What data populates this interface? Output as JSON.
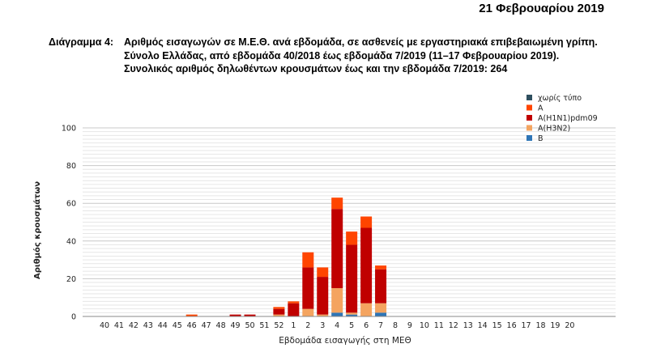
{
  "header": {
    "date": "21 Φεβρουαρίου 2019"
  },
  "caption": {
    "number": "Διάγραμμα 4:",
    "line1": "Αριθμός εισαγωγών σε Μ.Ε.Θ. ανά εβδομάδα, σε ασθενείς με εργαστηριακά επιβεβαιωμένη γρίπη.",
    "line2": "Σύνολο Ελλάδας, από εβδομάδα 40/2018 έως εβδομάδα 7/2019 (11–17 Φεβρουαρίου 2019).",
    "line3": "Συνολικός αριθμός δηλωθέντων κρουσμάτων έως και την εβδομάδα 7/2019: 264"
  },
  "chart_data": {
    "type": "bar",
    "stacked": true,
    "xlabel": "Εβδομάδα εισαγωγής στη ΜΕΘ",
    "ylabel": "Αριθμός κρουσμάτων",
    "ylim": [
      0,
      100
    ],
    "yticks": [
      0,
      20,
      40,
      60,
      80,
      100
    ],
    "grid": true,
    "legend_position": "top-right",
    "categories": [
      "40",
      "41",
      "42",
      "43",
      "44",
      "45",
      "46",
      "47",
      "48",
      "49",
      "50",
      "51",
      "52",
      "1",
      "2",
      "3",
      "4",
      "5",
      "6",
      "7",
      "8",
      "9",
      "10",
      "11",
      "12",
      "13",
      "14",
      "15",
      "16",
      "17",
      "18",
      "19",
      "20"
    ],
    "series": [
      {
        "name": "B",
        "color": "#2e75b6",
        "values": [
          0,
          0,
          0,
          0,
          0,
          0,
          0,
          0,
          0,
          0,
          0,
          0,
          0,
          0,
          0,
          0,
          2,
          1,
          0,
          2,
          0,
          0,
          0,
          0,
          0,
          0,
          0,
          0,
          0,
          0,
          0,
          0,
          0
        ]
      },
      {
        "name": "A(H3N2)",
        "color": "#f4a460",
        "values": [
          0,
          0,
          0,
          0,
          0,
          0,
          0,
          0,
          0,
          0,
          0,
          0,
          1,
          0,
          4,
          1,
          13,
          1,
          7,
          5,
          0,
          0,
          0,
          0,
          0,
          0,
          0,
          0,
          0,
          0,
          0,
          0,
          0
        ]
      },
      {
        "name": "A(H1N1)pdm09",
        "color": "#c00000",
        "values": [
          0,
          0,
          0,
          0,
          0,
          0,
          0,
          0,
          0,
          1,
          1,
          0,
          3,
          7,
          22,
          20,
          42,
          36,
          40,
          18,
          0,
          0,
          0,
          0,
          0,
          0,
          0,
          0,
          0,
          0,
          0,
          0,
          0
        ]
      },
      {
        "name": "A",
        "color": "#ff4500",
        "values": [
          0,
          0,
          0,
          0,
          0,
          0,
          1,
          0,
          0,
          0,
          0,
          0,
          1,
          1,
          8,
          5,
          6,
          7,
          6,
          2,
          0,
          0,
          0,
          0,
          0,
          0,
          0,
          0,
          0,
          0,
          0,
          0,
          0
        ]
      },
      {
        "name": "χωρίς τύπο",
        "color": "#2f4f5f",
        "values": [
          0,
          0,
          0,
          0,
          0,
          0,
          0,
          0,
          0,
          0,
          0,
          0,
          0,
          0,
          0,
          0,
          0,
          0,
          0,
          0,
          0,
          0,
          0,
          0,
          0,
          0,
          0,
          0,
          0,
          0,
          0,
          0,
          0
        ]
      }
    ],
    "legend_order": [
      "χωρίς τύπο",
      "A",
      "A(H1N1)pdm09",
      "A(H3N2)",
      "B"
    ]
  }
}
